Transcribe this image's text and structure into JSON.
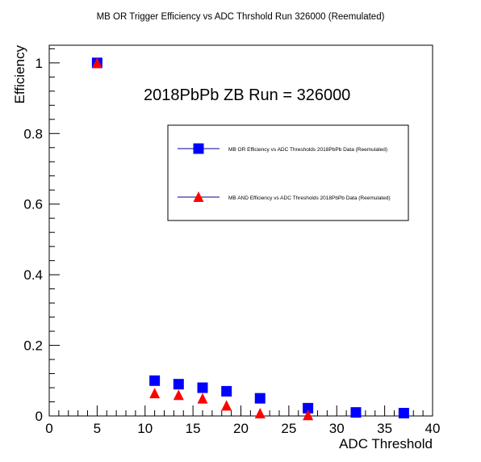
{
  "chart_data": {
    "type": "scatter",
    "title": "MB OR Trigger Efficiency vs ADC Thrshold Run 326000 (Reemulated)",
    "annotation": "2018PbPb ZB Run = 326000",
    "xlabel": "ADC Threshold",
    "ylabel": "Efficiency",
    "xlim": [
      0,
      40
    ],
    "ylim": [
      0,
      1.05
    ],
    "xticks": [
      "0",
      "5",
      "10",
      "15",
      "20",
      "25",
      "30",
      "35",
      "40"
    ],
    "yticks": [
      "0",
      "0.2",
      "0.4",
      "0.6",
      "0.8",
      "1"
    ],
    "grid": false,
    "legend_position": "top-right",
    "series": [
      {
        "name": "MB OR Efficiency vs ADC Thresholds 2018PbPb Data (Reemulated)",
        "marker": "square",
        "color": "#0000ff",
        "x": [
          5,
          11,
          13.5,
          16,
          18.5,
          22,
          27,
          32,
          37
        ],
        "y": [
          1.0,
          0.1,
          0.09,
          0.08,
          0.07,
          0.05,
          0.022,
          0.01,
          0.008
        ]
      },
      {
        "name": "MB AND Efficiency vs ADC Thresholds 2018PbPb Data (Reemulated)",
        "marker": "triangle",
        "color": "#ff0000",
        "x": [
          5,
          11,
          13.5,
          16,
          18.5,
          22,
          27
        ],
        "y": [
          1.0,
          0.065,
          0.06,
          0.05,
          0.03,
          0.008,
          0.003
        ]
      }
    ]
  }
}
